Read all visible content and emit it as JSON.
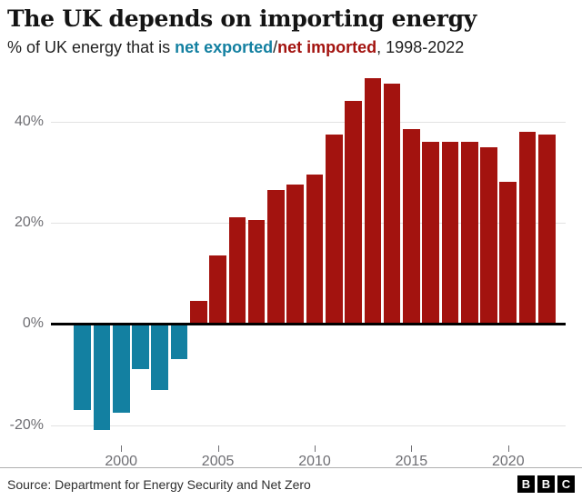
{
  "header": {
    "title": "The UK depends on importing energy",
    "subtitle_prefix": "% of UK energy that is ",
    "exported_label": "net exported",
    "separator": "/",
    "imported_label": "net imported",
    "subtitle_suffix": ", 1998-2022"
  },
  "colors": {
    "net_exported": "#1380A1",
    "net_imported": "#A3130F"
  },
  "chart_data": {
    "type": "bar",
    "title": "The UK depends on importing energy",
    "x": [
      1998,
      1999,
      2000,
      2001,
      2002,
      2003,
      2004,
      2005,
      2006,
      2007,
      2008,
      2009,
      2010,
      2011,
      2012,
      2013,
      2014,
      2015,
      2016,
      2017,
      2018,
      2019,
      2020,
      2021,
      2022
    ],
    "values": [
      -17,
      -21,
      -17.5,
      -9,
      -13,
      -7,
      4.5,
      13.5,
      21,
      20.5,
      26.5,
      27.5,
      29.5,
      37.5,
      44,
      48.5,
      47.5,
      38.5,
      36,
      36,
      36,
      35,
      28,
      38,
      37.5
    ],
    "legend": [
      {
        "label": "net exported",
        "color": "#1380A1",
        "applies_to": "negative values"
      },
      {
        "label": "net imported",
        "color": "#A3130F",
        "applies_to": "positive values"
      }
    ],
    "ylabel": "% of UK energy",
    "xlabel": "",
    "ylim": [
      -24,
      50
    ],
    "yticks": [
      -20,
      0,
      20,
      40
    ],
    "ytick_suffix": "%",
    "xticks": [
      2000,
      2005,
      2010,
      2015,
      2020
    ],
    "grid": true,
    "legend_position": "in-subtitle"
  },
  "footer": {
    "source": "Source: Department for Energy Security and Net Zero",
    "logo_letters": [
      "B",
      "B",
      "C"
    ]
  }
}
